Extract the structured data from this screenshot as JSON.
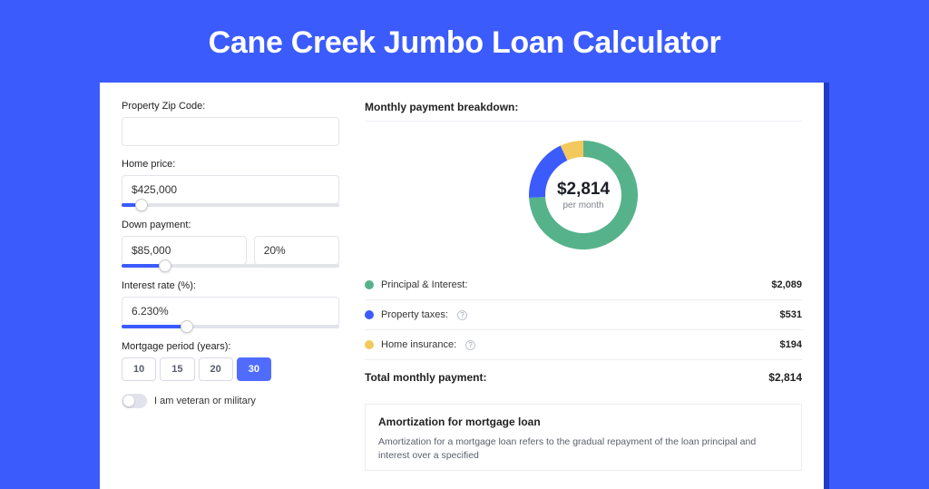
{
  "page": {
    "title": "Cane Creek Jumbo Loan Calculator",
    "background": "#3b5bfd",
    "panel_shadow": "#1e3cc9"
  },
  "form": {
    "zip": {
      "label": "Property Zip Code:",
      "value": ""
    },
    "home_price": {
      "label": "Home price:",
      "value": "$425,000",
      "slider_pct": 9
    },
    "down_payment": {
      "label": "Down payment:",
      "amount": "$85,000",
      "percent": "20%",
      "slider_pct": 20
    },
    "interest_rate": {
      "label": "Interest rate (%):",
      "value": "6.230%",
      "slider_pct": 30
    },
    "mortgage_period": {
      "label": "Mortgage period (years):",
      "options": [
        "10",
        "15",
        "20",
        "30"
      ],
      "selected": "30"
    },
    "veteran": {
      "label": "I am veteran or military",
      "on": false
    }
  },
  "breakdown": {
    "title": "Monthly payment breakdown:",
    "donut": {
      "amount": "$2,814",
      "sub": "per month",
      "segments": [
        {
          "name": "principal_interest",
          "color": "#56b28b",
          "pct": 74.2
        },
        {
          "name": "property_taxes",
          "color": "#3b5bfd",
          "pct": 18.9
        },
        {
          "name": "home_insurance",
          "color": "#f3c95e",
          "pct": 6.9
        }
      ],
      "ring_thickness": 18
    },
    "rows": [
      {
        "label": "Principal & Interest:",
        "color": "#56b28b",
        "value": "$2,089",
        "info": false
      },
      {
        "label": "Property taxes:",
        "color": "#3b5bfd",
        "value": "$531",
        "info": true
      },
      {
        "label": "Home insurance:",
        "color": "#f3c95e",
        "value": "$194",
        "info": true
      }
    ],
    "total": {
      "label": "Total monthly payment:",
      "value": "$2,814"
    }
  },
  "amortization": {
    "title": "Amortization for mortgage loan",
    "text": "Amortization for a mortgage loan refers to the gradual repayment of the loan principal and interest over a specified"
  }
}
